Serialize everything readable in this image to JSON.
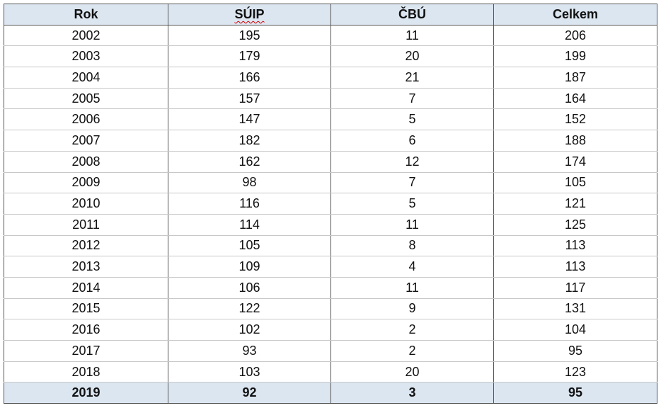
{
  "table": {
    "header": [
      "Rok",
      "SÚIP",
      "ČBÚ",
      "Celkem"
    ],
    "rows": [
      [
        2002,
        195,
        11,
        206
      ],
      [
        2003,
        179,
        20,
        199
      ],
      [
        2004,
        166,
        21,
        187
      ],
      [
        2005,
        157,
        7,
        164
      ],
      [
        2006,
        147,
        5,
        152
      ],
      [
        2007,
        182,
        6,
        188
      ],
      [
        2008,
        162,
        12,
        174
      ],
      [
        2009,
        98,
        7,
        105
      ],
      [
        2010,
        116,
        5,
        121
      ],
      [
        2011,
        114,
        11,
        125
      ],
      [
        2012,
        105,
        8,
        113
      ],
      [
        2013,
        109,
        4,
        113
      ],
      [
        2014,
        106,
        11,
        117
      ],
      [
        2015,
        122,
        9,
        131
      ],
      [
        2016,
        102,
        2,
        104
      ],
      [
        2017,
        93,
        2,
        95
      ],
      [
        2018,
        103,
        20,
        123
      ],
      [
        2019,
        92,
        3,
        95
      ]
    ]
  }
}
